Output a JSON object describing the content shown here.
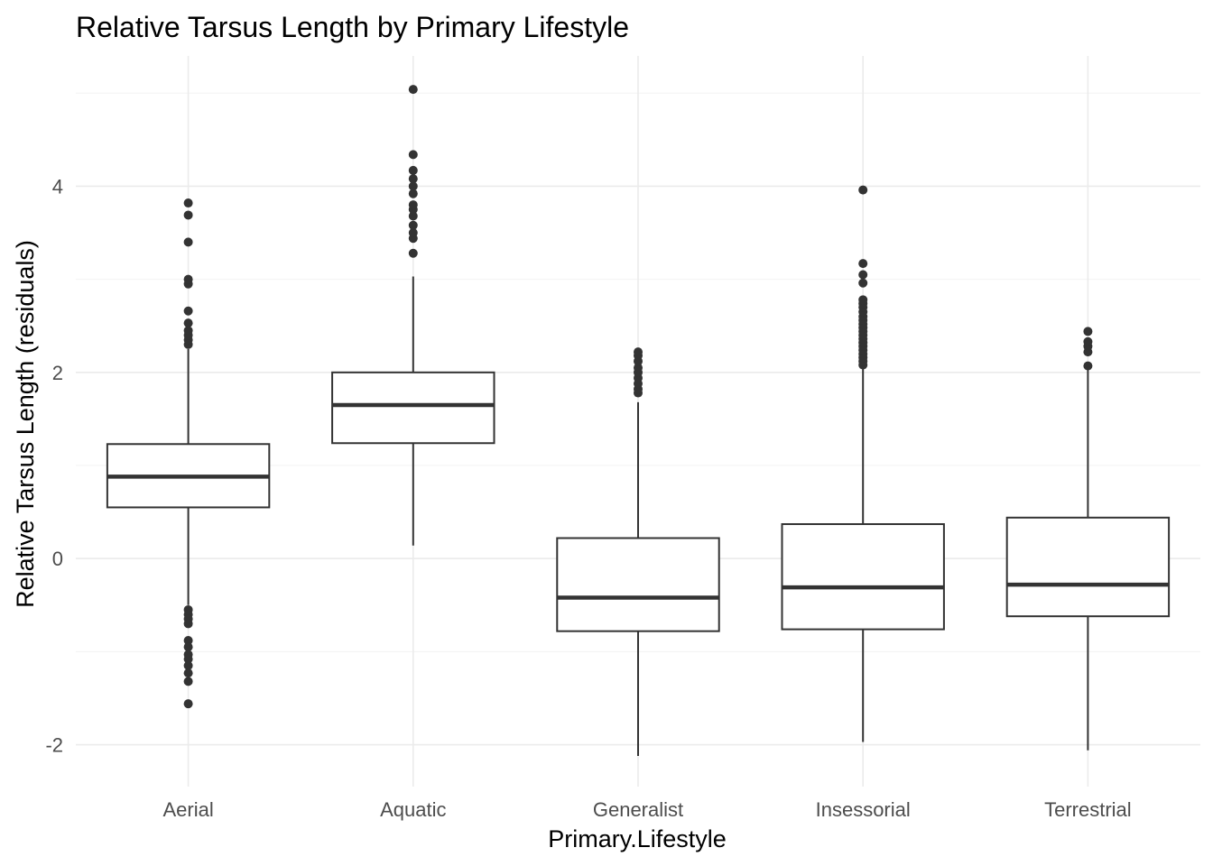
{
  "chart_data": {
    "type": "boxplot",
    "title": "Relative Tarsus Length by Primary Lifestyle",
    "xlabel": "Primary.Lifestyle",
    "ylabel": "Relative Tarsus Length (residuals)",
    "ylim": [
      -2.45,
      5.4
    ],
    "yticks": [
      -2,
      0,
      2,
      4
    ],
    "grid": true,
    "categories": [
      "Aerial",
      "Aquatic",
      "Generalist",
      "Insessorial",
      "Terrestrial"
    ],
    "boxes": [
      {
        "category": "Aerial",
        "lower_whisker": -0.5,
        "q1": 0.55,
        "median": 0.88,
        "q3": 1.23,
        "upper_whisker": 2.25,
        "outliers": [
          2.3,
          2.35,
          2.4,
          2.45,
          2.53,
          2.66,
          2.95,
          3.0,
          3.4,
          3.69,
          3.82,
          -0.55,
          -0.6,
          -0.65,
          -0.7,
          -0.88,
          -0.95,
          -1.03,
          -1.08,
          -1.15,
          -1.23,
          -1.32,
          -1.56
        ]
      },
      {
        "category": "Aquatic",
        "lower_whisker": 0.14,
        "q1": 1.24,
        "median": 1.65,
        "q3": 2.0,
        "upper_whisker": 3.03,
        "outliers": [
          3.28,
          3.44,
          3.5,
          3.58,
          3.68,
          3.75,
          3.8,
          3.92,
          4.0,
          4.08,
          4.17,
          4.34,
          5.04
        ]
      },
      {
        "category": "Generalist",
        "lower_whisker": -2.12,
        "q1": -0.78,
        "median": -0.42,
        "q3": 0.22,
        "upper_whisker": 1.68,
        "outliers": [
          1.78,
          1.82,
          1.88,
          1.94,
          2.0,
          2.05,
          2.12,
          2.18,
          2.22
        ]
      },
      {
        "category": "Insessorial",
        "lower_whisker": -1.97,
        "q1": -0.76,
        "median": -0.31,
        "q3": 0.37,
        "upper_whisker": 2.05,
        "outliers": [
          2.08,
          2.12,
          2.16,
          2.2,
          2.24,
          2.28,
          2.32,
          2.36,
          2.4,
          2.44,
          2.48,
          2.52,
          2.56,
          2.6,
          2.65,
          2.7,
          2.74,
          2.78,
          2.96,
          3.05,
          3.17,
          3.96
        ]
      },
      {
        "category": "Terrestrial",
        "lower_whisker": -2.06,
        "q1": -0.62,
        "median": -0.28,
        "q3": 0.44,
        "upper_whisker": 2.03,
        "outliers": [
          2.07,
          2.22,
          2.28,
          2.33,
          2.44
        ]
      }
    ]
  }
}
